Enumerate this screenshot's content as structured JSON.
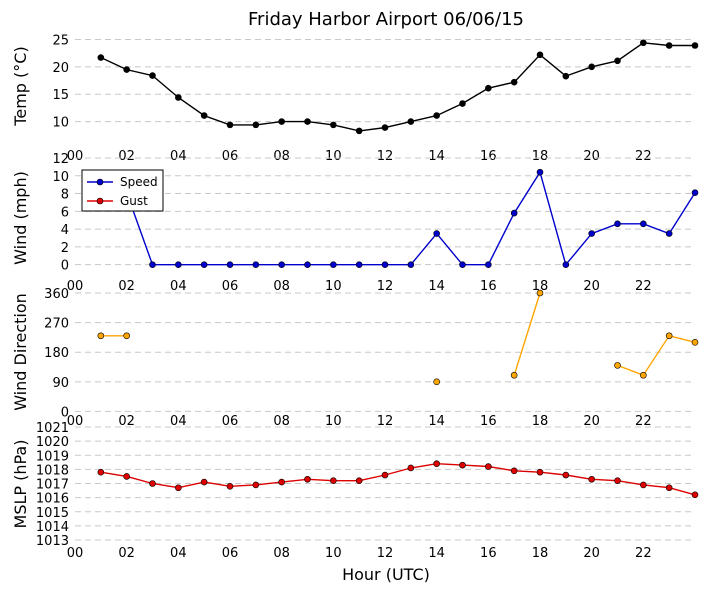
{
  "chart_data": [
    {
      "type": "line",
      "title": "Friday Harbor Airport 06/06/15",
      "ylabel": "Temp (°C)",
      "ylim": [
        7,
        26
      ],
      "yticks": [
        "10",
        "15",
        "20",
        "25"
      ],
      "ytick_values": [
        10,
        15,
        20,
        25
      ],
      "xticks": [
        "00",
        "02",
        "04",
        "06",
        "08",
        "10",
        "12",
        "14",
        "16",
        "18",
        "20",
        "22"
      ],
      "grid": true,
      "series": [
        {
          "color": "#000000",
          "x": [
            1,
            2,
            3,
            4,
            5,
            6,
            7,
            8,
            9,
            10,
            11,
            12,
            13,
            14,
            15,
            16,
            17,
            18,
            19,
            20,
            21,
            22,
            23,
            24
          ],
          "values": [
            21.7,
            19.5,
            18.4,
            14.4,
            11.1,
            9.4,
            9.4,
            10.0,
            10.0,
            9.4,
            8.3,
            8.9,
            10.0,
            11.1,
            13.3,
            16.1,
            17.2,
            22.2,
            18.3,
            20.0,
            21.1,
            24.4,
            23.9,
            23.9
          ]
        }
      ]
    },
    {
      "type": "line",
      "ylabel": "Wind (mph)",
      "ylim": [
        -1.5,
        12
      ],
      "yticks": [
        "0",
        "2",
        "4",
        "6",
        "8",
        "10",
        "12"
      ],
      "ytick_values": [
        0,
        2,
        4,
        6,
        8,
        10,
        12
      ],
      "xticks": [
        "00",
        "02",
        "04",
        "06",
        "08",
        "10",
        "12",
        "14",
        "16",
        "18",
        "20",
        "22"
      ],
      "grid": true,
      "legend": "top-left",
      "series": [
        {
          "name": "Speed",
          "color": "#0000cc",
          "x": [
            1,
            2,
            3,
            4,
            5,
            6,
            7,
            8,
            9,
            10,
            11,
            12,
            13,
            14,
            15,
            16,
            17,
            18,
            19,
            20,
            21,
            22,
            23,
            24
          ],
          "values": [
            8.1,
            8.1,
            0,
            0,
            0,
            0,
            0,
            0,
            0,
            0,
            0,
            0,
            0,
            3.5,
            0,
            0,
            5.8,
            10.4,
            0,
            3.5,
            4.6,
            4.6,
            3.5,
            8.1
          ]
        },
        {
          "name": "Gust",
          "color": "#dd0000",
          "x": [],
          "values": []
        }
      ]
    },
    {
      "type": "line",
      "ylabel": "Wind Direction",
      "ylim": [
        -20,
        360
      ],
      "yticks": [
        "0",
        "90",
        "180",
        "270",
        "360"
      ],
      "ytick_values": [
        0,
        90,
        180,
        270,
        360
      ],
      "xticks": [
        "00",
        "02",
        "04",
        "06",
        "08",
        "10",
        "12",
        "14",
        "16",
        "18",
        "20",
        "22"
      ],
      "grid": true,
      "series": [
        {
          "color": "#ffa500",
          "segments": [
            {
              "x": [
                1,
                2
              ],
              "values": [
                230,
                230
              ]
            },
            {
              "x": [
                14
              ],
              "values": [
                90
              ]
            },
            {
              "x": [
                17,
                18
              ],
              "values": [
                110,
                360
              ]
            },
            {
              "x": [
                21,
                22,
                23,
                24
              ],
              "values": [
                140,
                110,
                230,
                210
              ]
            }
          ]
        }
      ]
    },
    {
      "type": "line",
      "ylabel": "MSLP (hPa)",
      "xlabel": "Hour (UTC)",
      "ylim": [
        1013,
        1021
      ],
      "yticks": [
        "1013",
        "1014",
        "1015",
        "1016",
        "1017",
        "1018",
        "1019",
        "1020",
        "1021"
      ],
      "ytick_values": [
        1013,
        1014,
        1015,
        1016,
        1017,
        1018,
        1019,
        1020,
        1021
      ],
      "xticks": [
        "00",
        "02",
        "04",
        "06",
        "08",
        "10",
        "12",
        "14",
        "16",
        "18",
        "20",
        "22"
      ],
      "grid": true,
      "series": [
        {
          "color": "#dd0000",
          "x": [
            1,
            2,
            3,
            4,
            5,
            6,
            7,
            8,
            9,
            10,
            11,
            12,
            13,
            14,
            15,
            16,
            17,
            18,
            19,
            20,
            21,
            22,
            23,
            24
          ],
          "values": [
            1017.8,
            1017.5,
            1017.0,
            1016.7,
            1017.1,
            1016.8,
            1016.9,
            1017.1,
            1017.3,
            1017.2,
            1017.2,
            1017.6,
            1018.1,
            1018.4,
            1018.3,
            1018.2,
            1017.9,
            1017.8,
            1017.6,
            1017.3,
            1017.2,
            1016.9,
            1016.7,
            1016.2
          ]
        }
      ]
    }
  ]
}
